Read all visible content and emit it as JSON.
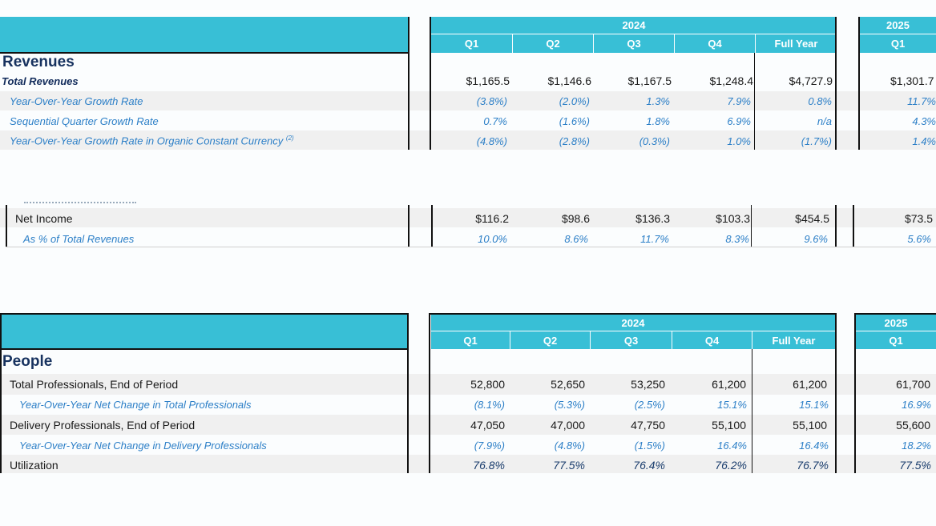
{
  "revenue_table": {
    "year_2024": "2024",
    "year_2025": "2025",
    "quarters_2024": [
      "Q1",
      "Q2",
      "Q3",
      "Q4",
      "Full Year"
    ],
    "quarters_2025": [
      "Q1"
    ],
    "section_title": "Revenues",
    "rows": [
      {
        "label": "Total Revenues",
        "sup": "",
        "values": [
          "$1,165.5",
          "$1,146.6",
          "$1,167.5",
          "$1,248.4",
          "$4,727.9",
          "$1,301.7"
        ]
      },
      {
        "label": "Year-Over-Year Growth Rate",
        "sup": "",
        "values": [
          "(3.8%)",
          "(2.0%)",
          "1.3%",
          "7.9%",
          "0.8%",
          "11.7%"
        ]
      },
      {
        "label": "Sequential Quarter Growth Rate",
        "sup": "",
        "values": [
          "0.7%",
          "(1.6%)",
          "1.8%",
          "6.9%",
          "n/a",
          "4.3%"
        ]
      },
      {
        "label": "Year-Over-Year Growth Rate in Organic Constant Currency",
        "sup": "(2)",
        "values": [
          "(4.8%)",
          "(2.8%)",
          "(0.3%)",
          "1.0%",
          "(1.7%)",
          "1.4%"
        ]
      }
    ]
  },
  "income_table": {
    "rows": [
      {
        "label": "Net Income",
        "values": [
          "$116.2",
          "$98.6",
          "$136.3",
          "$103.3",
          "$454.5",
          "$73.5"
        ]
      },
      {
        "label": "As % of Total Revenues",
        "values": [
          "10.0%",
          "8.6%",
          "11.7%",
          "8.3%",
          "9.6%",
          "5.6%"
        ]
      }
    ]
  },
  "people_table": {
    "year_2024": "2024",
    "year_2025": "2025",
    "quarters_2024": [
      "Q1",
      "Q2",
      "Q3",
      "Q4",
      "Full Year"
    ],
    "quarters_2025": [
      "Q1"
    ],
    "section_title": "People",
    "rows": [
      {
        "label": "Total Professionals, End of Period",
        "values": [
          "52,800",
          "52,650",
          "53,250",
          "61,200",
          "61,200",
          "61,700"
        ]
      },
      {
        "label": "Year-Over-Year Net Change in Total Professionals",
        "values": [
          "(8.1%)",
          "(5.3%)",
          "(2.5%)",
          "15.1%",
          "15.1%",
          "16.9%"
        ]
      },
      {
        "label": "Delivery Professionals, End of Period",
        "values": [
          "47,050",
          "47,000",
          "47,750",
          "55,100",
          "55,100",
          "55,600"
        ]
      },
      {
        "label": "Year-Over-Year Net Change in Delivery Professionals",
        "values": [
          "(7.9%)",
          "(4.8%)",
          "(1.5%)",
          "16.4%",
          "16.4%",
          "18.2%"
        ]
      },
      {
        "label": "Utilization",
        "values": [
          "76.8%",
          "77.5%",
          "76.4%",
          "76.2%",
          "76.7%",
          "77.5%"
        ]
      }
    ]
  }
}
